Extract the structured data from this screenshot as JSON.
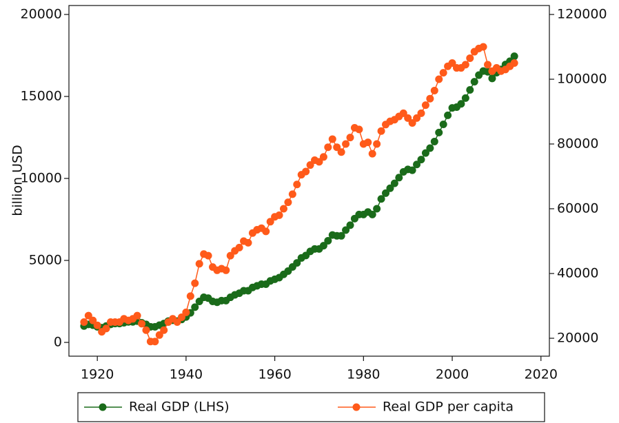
{
  "chart_data": {
    "type": "line",
    "y_label": "billion USD",
    "x": [
      1917,
      1918,
      1919,
      1920,
      1921,
      1922,
      1923,
      1924,
      1925,
      1926,
      1927,
      1928,
      1929,
      1930,
      1931,
      1932,
      1933,
      1934,
      1935,
      1936,
      1937,
      1938,
      1939,
      1940,
      1941,
      1942,
      1943,
      1944,
      1945,
      1946,
      1947,
      1948,
      1949,
      1950,
      1951,
      1952,
      1953,
      1954,
      1955,
      1956,
      1957,
      1958,
      1959,
      1960,
      1961,
      1962,
      1963,
      1964,
      1965,
      1966,
      1967,
      1968,
      1969,
      1970,
      1971,
      1972,
      1973,
      1974,
      1975,
      1976,
      1977,
      1978,
      1979,
      1980,
      1981,
      1982,
      1983,
      1984,
      1985,
      1986,
      1987,
      1988,
      1989,
      1990,
      1991,
      1992,
      1993,
      1994,
      1995,
      1996,
      1997,
      1998,
      1999,
      2000,
      2001,
      2002,
      2003,
      2004,
      2005,
      2006,
      2007,
      2008,
      2009,
      2010,
      2011,
      2012,
      2013,
      2014
    ],
    "series": [
      {
        "name": "Real GDP (LHS)",
        "color": "#1a6b1a",
        "axis": "y",
        "values": [
          1000,
          1100,
          1050,
          950,
          900,
          1000,
          1100,
          1150,
          1150,
          1200,
          1250,
          1250,
          1300,
          1200,
          1100,
          950,
          950,
          1050,
          1150,
          1300,
          1350,
          1300,
          1400,
          1550,
          1800,
          2150,
          2500,
          2750,
          2700,
          2500,
          2450,
          2550,
          2550,
          2750,
          2900,
          3000,
          3150,
          3150,
          3350,
          3450,
          3550,
          3550,
          3750,
          3850,
          3950,
          4150,
          4350,
          4600,
          4850,
          5150,
          5300,
          5550,
          5700,
          5700,
          5900,
          6200,
          6550,
          6500,
          6500,
          6850,
          7150,
          7550,
          7800,
          7800,
          7950,
          7800,
          8150,
          8750,
          9100,
          9400,
          9700,
          10050,
          10400,
          10550,
          10500,
          10850,
          11150,
          11550,
          11850,
          12250,
          12800,
          13300,
          13850,
          14300,
          14350,
          14550,
          14900,
          15400,
          15900,
          16300,
          16550,
          16500,
          16100,
          16450,
          16650,
          16950,
          17150,
          17450
        ]
      },
      {
        "name": "Real GDP per capita",
        "color": "#ff5a1a",
        "axis": "y2",
        "values": [
          25000,
          27000,
          25500,
          24000,
          22000,
          23000,
          25000,
          25000,
          25000,
          26000,
          25500,
          26000,
          27000,
          24500,
          22500,
          19000,
          19000,
          21000,
          22500,
          25000,
          26000,
          25000,
          26500,
          28000,
          33000,
          37000,
          43000,
          46000,
          45500,
          42000,
          41000,
          41500,
          41000,
          45500,
          47000,
          48000,
          50000,
          49500,
          52500,
          53500,
          54000,
          53000,
          56000,
          57500,
          58000,
          60000,
          62000,
          64500,
          67500,
          70500,
          71500,
          73500,
          75000,
          74500,
          76000,
          79000,
          81500,
          79000,
          77500,
          80000,
          82000,
          85000,
          84500,
          80000,
          80500,
          77000,
          80000,
          84000,
          86000,
          87000,
          87500,
          88500,
          89500,
          88000,
          86500,
          88000,
          89500,
          92000,
          94000,
          96500,
          100000,
          102000,
          104000,
          105000,
          103500,
          103500,
          104500,
          106500,
          108500,
          109500,
          110000,
          104500,
          102500,
          103500,
          102500,
          103000,
          104000,
          105000
        ]
      }
    ],
    "xlim": [
      1913.6,
      2021.9
    ],
    "xticks": [
      1920,
      1940,
      1960,
      1980,
      2000,
      2020
    ],
    "ylim": [
      -840,
      20546
    ],
    "yticks": [
      0,
      5000,
      10000,
      15000,
      20000
    ],
    "y2lim": [
      14468,
      122766
    ],
    "y2ticks": [
      20000,
      40000,
      60000,
      80000,
      100000,
      120000
    ],
    "grid": false,
    "legend": "bottom"
  }
}
